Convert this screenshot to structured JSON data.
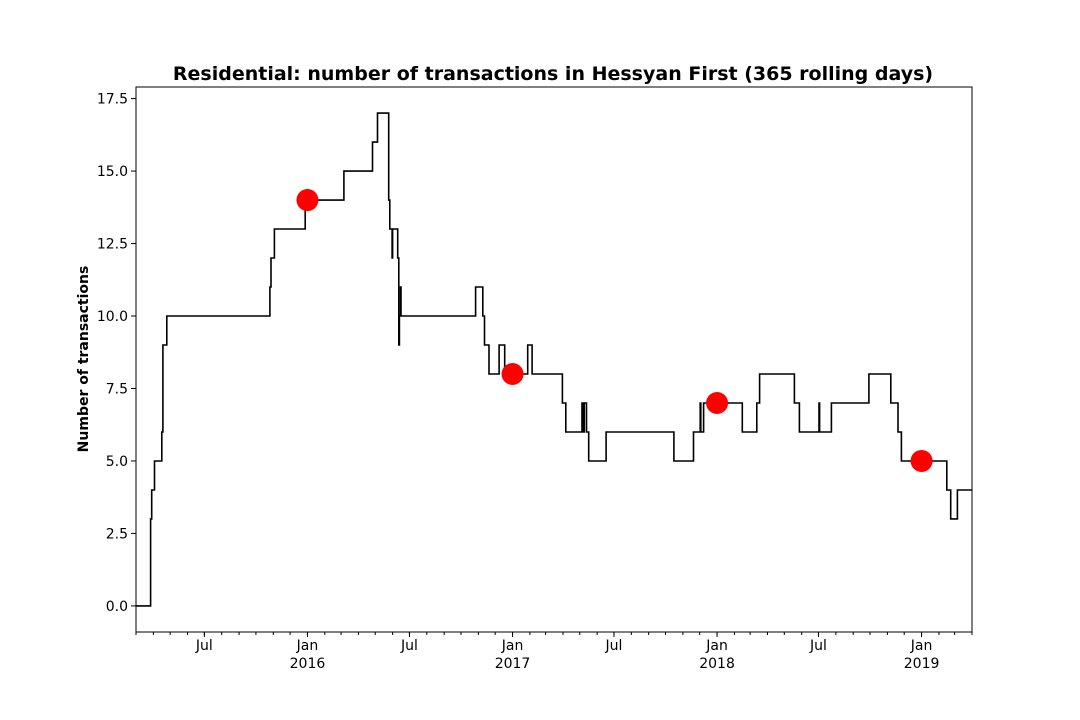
{
  "chart_data": {
    "type": "line",
    "title": "Residential: number of transactions in Hessyan First (365 rolling days)",
    "xlabel": "",
    "ylabel": "Number of transactions",
    "xlim": [
      "2015-03-01",
      "2019-04-01"
    ],
    "ylim": [
      -0.9,
      17.9
    ],
    "y_ticks": [
      0.0,
      2.5,
      5.0,
      7.5,
      10.0,
      12.5,
      15.0,
      17.5
    ],
    "y_tick_labels": [
      "0.0",
      "2.5",
      "5.0",
      "7.5",
      "10.0",
      "12.5",
      "15.0",
      "17.5"
    ],
    "x_major_ticks": [
      {
        "date": "2015-07-01",
        "label": "Jul"
      },
      {
        "date": "2016-01-01",
        "label": "Jan\n2016"
      },
      {
        "date": "2016-07-01",
        "label": "Jul"
      },
      {
        "date": "2017-01-01",
        "label": "Jan\n2017"
      },
      {
        "date": "2017-07-01",
        "label": "Jul"
      },
      {
        "date": "2018-01-01",
        "label": "Jan\n2018"
      },
      {
        "date": "2018-07-01",
        "label": "Jul"
      },
      {
        "date": "2019-01-01",
        "label": "Jan\n2019"
      }
    ],
    "grid": false,
    "legend": "none",
    "series": [
      {
        "color": "#000000",
        "step": true,
        "points": [
          [
            "2015-03-01",
            0
          ],
          [
            "2015-03-27",
            3
          ],
          [
            "2015-03-29",
            4
          ],
          [
            "2015-04-03",
            5
          ],
          [
            "2015-04-16",
            6
          ],
          [
            "2015-04-18",
            9
          ],
          [
            "2015-04-25",
            10
          ],
          [
            "2015-10-26",
            11
          ],
          [
            "2015-10-28",
            12
          ],
          [
            "2015-11-03",
            13
          ],
          [
            "2015-12-28",
            14
          ],
          [
            "2016-03-06",
            15
          ],
          [
            "2016-04-26",
            16
          ],
          [
            "2016-05-05",
            17
          ],
          [
            "2016-05-25",
            14
          ],
          [
            "2016-05-27",
            13
          ],
          [
            "2016-05-31",
            12
          ],
          [
            "2016-06-01",
            13
          ],
          [
            "2016-06-10",
            12
          ],
          [
            "2016-06-12",
            9
          ],
          [
            "2016-06-13",
            10
          ],
          [
            "2016-06-15",
            11
          ],
          [
            "2016-06-16",
            10
          ],
          [
            "2016-10-27",
            11
          ],
          [
            "2016-11-09",
            10
          ],
          [
            "2016-11-12",
            9
          ],
          [
            "2016-11-20",
            8
          ],
          [
            "2016-12-08",
            9
          ],
          [
            "2016-12-18",
            8
          ],
          [
            "2017-01-28",
            9
          ],
          [
            "2017-02-05",
            8
          ],
          [
            "2017-03-31",
            7
          ],
          [
            "2017-04-06",
            6
          ],
          [
            "2017-05-05",
            7
          ],
          [
            "2017-05-07",
            6
          ],
          [
            "2017-05-09",
            7
          ],
          [
            "2017-05-13",
            6
          ],
          [
            "2017-05-17",
            5
          ],
          [
            "2017-06-17",
            6
          ],
          [
            "2017-10-16",
            5
          ],
          [
            "2017-11-20",
            6
          ],
          [
            "2017-12-02",
            7
          ],
          [
            "2017-12-03",
            6
          ],
          [
            "2017-12-08",
            7
          ],
          [
            "2018-02-15",
            6
          ],
          [
            "2018-03-13",
            7
          ],
          [
            "2018-03-18",
            8
          ],
          [
            "2018-05-19",
            7
          ],
          [
            "2018-05-28",
            6
          ],
          [
            "2018-07-02",
            7
          ],
          [
            "2018-07-03",
            6
          ],
          [
            "2018-07-24",
            7
          ],
          [
            "2018-09-29",
            8
          ],
          [
            "2018-11-07",
            7
          ],
          [
            "2018-11-20",
            6
          ],
          [
            "2018-11-26",
            5
          ],
          [
            "2019-02-15",
            4
          ],
          [
            "2019-02-22",
            3
          ],
          [
            "2019-03-06",
            4
          ],
          [
            "2019-04-01",
            4
          ]
        ]
      },
      {
        "color": "#ff0000",
        "marker": "circle",
        "line": false,
        "points": [
          [
            "2016-01-01",
            14
          ],
          [
            "2017-01-01",
            8
          ],
          [
            "2018-01-01",
            7
          ],
          [
            "2019-01-01",
            5
          ]
        ]
      }
    ]
  }
}
